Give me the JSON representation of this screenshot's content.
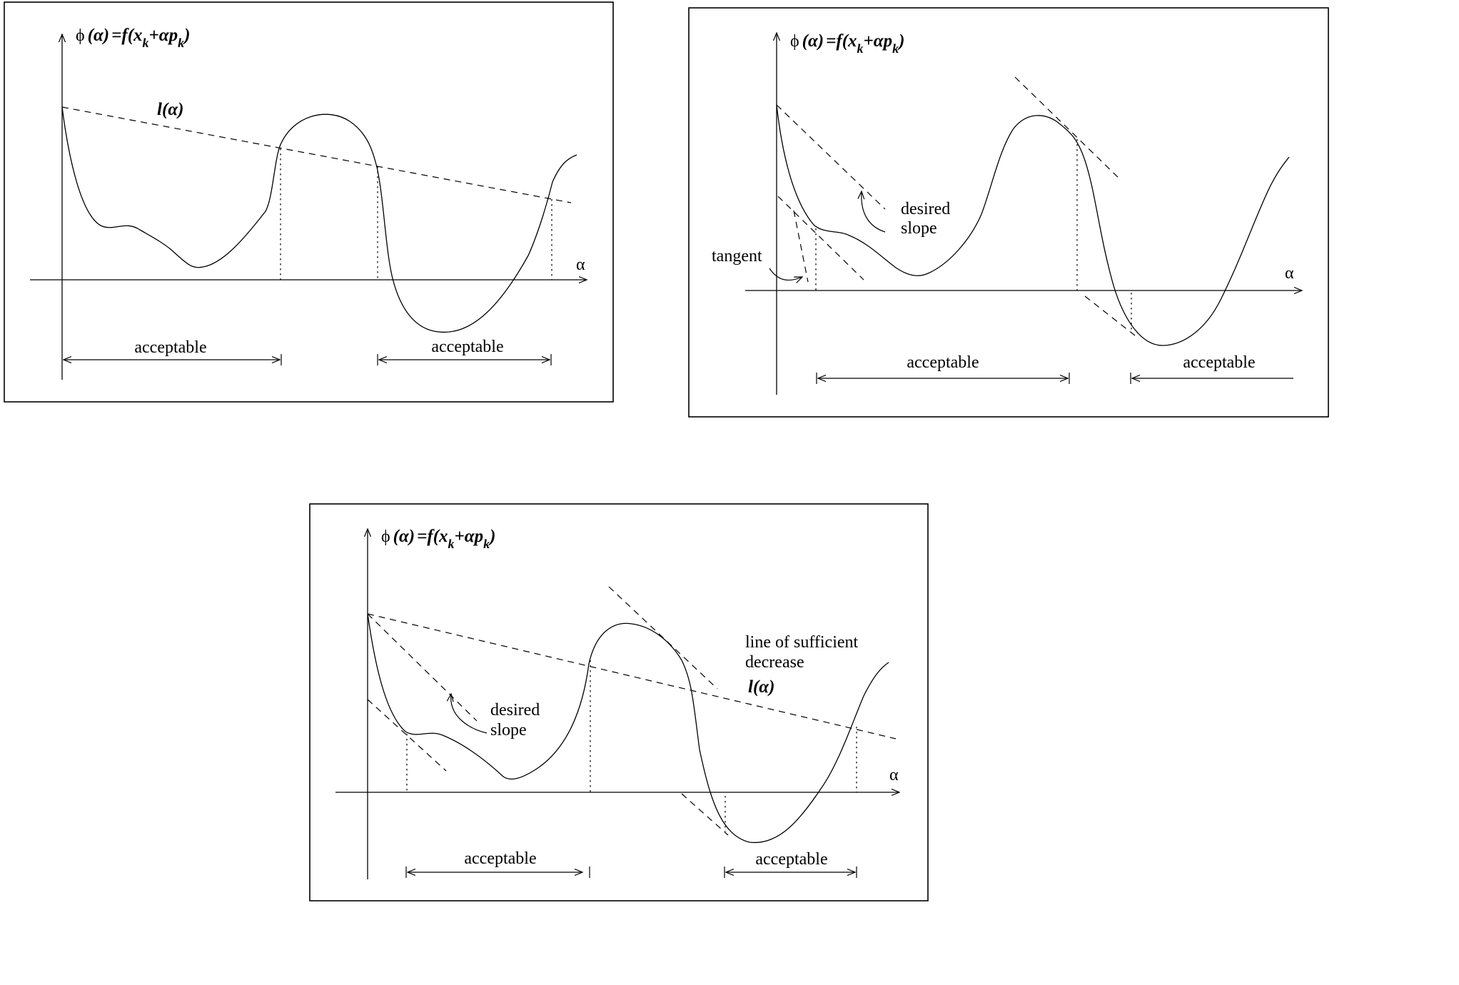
{
  "phi_label": {
    "phi": "ϕ",
    "open_alpha": "(α)",
    "eq_f": "=f(x",
    "sub_k1": "k",
    "plus_alpha_p": "+αp",
    "sub_k2": "k",
    "close": ")"
  },
  "axis_label": "α",
  "l_alpha": "l(α)",
  "acceptable": "acceptable",
  "desired_slope": [
    "desired",
    "slope"
  ],
  "tangent": "tangent",
  "sufficient_decrease": [
    "line of sufficient",
    "decrease"
  ]
}
